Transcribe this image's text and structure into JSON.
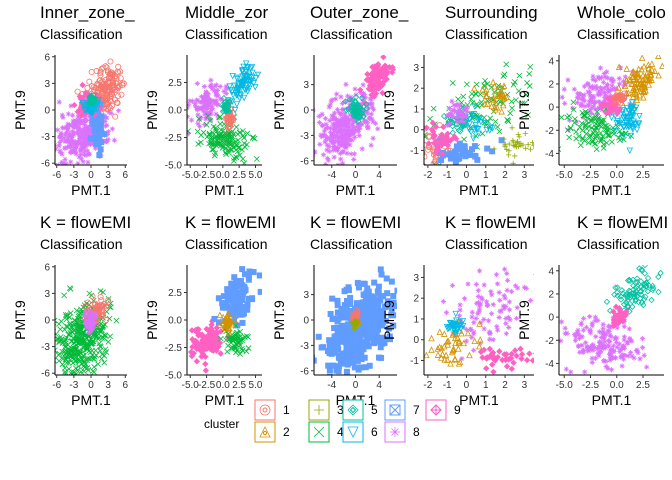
{
  "legend": {
    "title": "cluster",
    "entries": [
      {
        "label": "1",
        "color": "#F8766D",
        "shape": "circle-in-square"
      },
      {
        "label": "2",
        "color": "#D39200",
        "shape": "triangle-in-square"
      },
      {
        "label": "3",
        "color": "#93AA00",
        "shape": "plus-in-square"
      },
      {
        "label": "4",
        "color": "#00BA38",
        "shape": "cross-in-square"
      },
      {
        "label": "5",
        "color": "#00C19F",
        "shape": "diamond-in-square"
      },
      {
        "label": "6",
        "color": "#00B9E3",
        "shape": "down-triangle-in-square"
      },
      {
        "label": "7",
        "color": "#619CFF",
        "shape": "square-cross"
      },
      {
        "label": "8",
        "color": "#DB72FB",
        "shape": "asterisk"
      },
      {
        "label": "9",
        "color": "#FF61C3",
        "shape": "diamond-plus"
      }
    ]
  },
  "chart_data": [
    {
      "type": "scatter",
      "title": "Inner_zone_",
      "subtitle": "Classification",
      "xlabel": "PMT.1",
      "ylabel": "PMT.9",
      "xticks": [
        "-6",
        "-3",
        "0",
        "3",
        "6"
      ],
      "yticks": [
        "-6",
        "-3",
        "0",
        "3",
        "6"
      ],
      "xlim": [
        -6.3,
        6.3
      ],
      "ylim": [
        -6.2,
        6.2
      ],
      "points_depicted": "dense point clouds per cluster; individual points not legible",
      "series": [
        {
          "cluster": "1",
          "center": [
            3.5,
            3.5
          ]
        },
        {
          "cluster": "8",
          "center": [
            -2.5,
            -1.5
          ]
        },
        {
          "cluster": "7",
          "center": [
            1.2,
            -1.5
          ]
        },
        {
          "cluster": "9",
          "center": [
            -1,
            0.6
          ]
        },
        {
          "cluster": "6",
          "center": [
            0,
            0.5
          ]
        },
        {
          "cluster": "5",
          "center": [
            0,
            1.2
          ]
        }
      ]
    },
    {
      "type": "scatter",
      "title": "Middle_zor",
      "subtitle": "Classification",
      "xlabel": "PMT.1",
      "ylabel": "PMT.9",
      "xticks": [
        "-5.0",
        "-2.5",
        "0.0",
        "2.5",
        "5.0"
      ],
      "yticks": [
        "-5.0",
        "-2.5",
        "0.0",
        "2.5"
      ],
      "xlim": [
        -5.5,
        6.0
      ],
      "ylim": [
        -5.0,
        5.0
      ],
      "points_depicted": "dense point clouds per cluster; individual points not legible",
      "series": [
        {
          "cluster": "6",
          "center": [
            2.5,
            1.8
          ]
        },
        {
          "cluster": "8",
          "center": [
            -2.5,
            0.5
          ]
        },
        {
          "cluster": "4",
          "center": [
            0.5,
            -2.5
          ]
        },
        {
          "cluster": "1",
          "center": [
            1.0,
            -0.5
          ]
        }
      ]
    },
    {
      "type": "scatter",
      "title": "Outer_zone_",
      "subtitle": "Classification",
      "xlabel": "PMT.1",
      "ylabel": "PMT.9",
      "xticks": [
        "-4",
        "0",
        "4"
      ],
      "yticks": [
        "-6",
        "-3",
        "0",
        "3"
      ],
      "xlim": [
        -7.0,
        7.0
      ],
      "ylim": [
        -6.5,
        6.5
      ],
      "points_depicted": "dense point clouds per cluster; individual points not legible",
      "series": [
        {
          "cluster": "9",
          "center": [
            3.5,
            3.0
          ]
        },
        {
          "cluster": "8",
          "center": [
            -1.5,
            -1.5
          ]
        },
        {
          "cluster": "5",
          "center": [
            0,
            0
          ]
        }
      ]
    },
    {
      "type": "scatter",
      "title": "Surrounding",
      "subtitle": "Classification",
      "xlabel": "PMT.1",
      "ylabel": "PMT.9",
      "xticks": [
        "-2",
        "-1",
        "0",
        "1",
        "2",
        "3"
      ],
      "yticks": [
        "-1",
        "0",
        "1",
        "2",
        "3"
      ],
      "xlim": [
        -2.2,
        3.5
      ],
      "ylim": [
        -1.7,
        3.6
      ],
      "points_depicted": "dense point clouds per cluster; individual points not legible",
      "series": [
        {
          "cluster": "4",
          "center": [
            0.5,
            1.0
          ]
        },
        {
          "cluster": "5",
          "center": [
            -0.3,
            0.2
          ]
        },
        {
          "cluster": "6",
          "center": [
            0.5,
            0.2
          ]
        },
        {
          "cluster": "2",
          "center": [
            1.2,
            1.2
          ]
        },
        {
          "cluster": "1",
          "center": [
            -1.3,
            -0.8
          ]
        },
        {
          "cluster": "7",
          "center": [
            -0.3,
            -1.0
          ]
        },
        {
          "cluster": "9",
          "center": [
            -1.2,
            -0.5
          ]
        },
        {
          "cluster": "3",
          "center": [
            2.8,
            -0.8
          ]
        }
      ]
    },
    {
      "type": "scatter",
      "title": "Whole_colo",
      "subtitle": "Classification",
      "xlabel": "PMT.1",
      "ylabel": "PMT.9",
      "xticks": [
        "-5.0",
        "-2.5",
        "0.0",
        "2.5"
      ],
      "yticks": [
        "-4",
        "-2",
        "0",
        "2",
        "4"
      ],
      "xlim": [
        -5.5,
        4.5
      ],
      "ylim": [
        -5.0,
        4.5
      ],
      "points_depicted": "dense point clouds per cluster; individual points not legible",
      "series": [
        {
          "cluster": "2",
          "center": [
            2.0,
            2.5
          ]
        },
        {
          "cluster": "8",
          "center": [
            -2.0,
            1.5
          ]
        },
        {
          "cluster": "4",
          "center": [
            -2.0,
            -1.5
          ]
        },
        {
          "cluster": "6",
          "center": [
            1.0,
            -1.0
          ]
        },
        {
          "cluster": "9",
          "center": [
            -0.5,
            0.2
          ]
        }
      ]
    },
    {
      "type": "scatter",
      "title": "K = flowEMI",
      "subtitle": "Classification",
      "xlabel": "PMT.1",
      "ylabel": "PMT.9",
      "xticks": [
        "-6",
        "-3",
        "0",
        "3",
        "6"
      ],
      "yticks": [
        "-6",
        "-3",
        "0",
        "3",
        "6"
      ],
      "xlim": [
        -6.3,
        6.3
      ],
      "ylim": [
        -6.2,
        6.2
      ],
      "points_depicted": "dense point clouds per cluster; individual points not legible",
      "series": [
        {
          "cluster": "4",
          "center": [
            -1.5,
            -1.5
          ]
        },
        {
          "cluster": "1",
          "center": [
            0.8,
            0.8
          ]
        },
        {
          "cluster": "8",
          "center": [
            0,
            0
          ]
        }
      ]
    },
    {
      "type": "scatter",
      "title": "K = flowEMI",
      "subtitle": "Classification",
      "xlabel": "PMT.1",
      "ylabel": "PMT.9",
      "xticks": [
        "-5.0",
        "-2.5",
        "0.0",
        "2.5",
        "5.0"
      ],
      "yticks": [
        "-5.0",
        "-2.5",
        "0.0",
        "2.5"
      ],
      "xlim": [
        -5.5,
        6.0
      ],
      "ylim": [
        -5.0,
        5.0
      ],
      "points_depicted": "dense point clouds per cluster; individual points not legible",
      "series": [
        {
          "cluster": "7",
          "center": [
            2.0,
            1.5
          ]
        },
        {
          "cluster": "9",
          "center": [
            -2.0,
            -1.5
          ]
        },
        {
          "cluster": "4",
          "center": [
            2.0,
            -1.5
          ]
        },
        {
          "cluster": "2",
          "center": [
            0.5,
            0
          ]
        }
      ]
    },
    {
      "type": "scatter",
      "title": "K = flowEMI",
      "subtitle": "Classification",
      "xlabel": "PMT.1",
      "ylabel": "PMT.9",
      "xticks": [
        "-4",
        "0",
        "4"
      ],
      "yticks": [
        "-6",
        "-3",
        "0",
        "3"
      ],
      "xlim": [
        -7.0,
        7.0
      ],
      "ylim": [
        -6.5,
        6.5
      ],
      "points_depicted": "dense point clouds per cluster; individual points not legible",
      "series": [
        {
          "cluster": "7",
          "center": [
            0,
            -0.5
          ]
        },
        {
          "cluster": "1",
          "center": [
            0,
            0.3
          ]
        },
        {
          "cluster": "3",
          "center": [
            0,
            -0.5
          ]
        }
      ]
    },
    {
      "type": "scatter",
      "title": "K = flowEMI",
      "subtitle": "Classification",
      "xlabel": "PMT.1",
      "ylabel": "PMT.9",
      "xticks": [
        "-2",
        "-1",
        "0",
        "1",
        "2",
        "3"
      ],
      "yticks": [
        "-1",
        "0",
        "1",
        "2",
        "3"
      ],
      "xlim": [
        -2.2,
        3.5
      ],
      "ylim": [
        -1.7,
        3.6
      ],
      "points_depicted": "dense point clouds per cluster; individual points not legible",
      "series": [
        {
          "cluster": "8",
          "center": [
            1.5,
            1.5
          ]
        },
        {
          "cluster": "2",
          "center": [
            -0.5,
            -0.3
          ]
        },
        {
          "cluster": "9",
          "center": [
            2.0,
            -0.8
          ]
        }
      ]
    },
    {
      "type": "scatter",
      "title": "K = flowEMI",
      "subtitle": "Classification",
      "xlabel": "PMT.1",
      "ylabel": "PMT.9",
      "xticks": [
        "-5.0",
        "-2.5",
        "0.0",
        "2.5"
      ],
      "yticks": [
        "-4",
        "-2",
        "0",
        "2",
        "4"
      ],
      "xlim": [
        -5.5,
        4.5
      ],
      "ylim": [
        -5.0,
        4.5
      ],
      "points_depicted": "dense point clouds per cluster; individual points not legible",
      "series": [
        {
          "cluster": "5",
          "center": [
            1.5,
            2.0
          ]
        },
        {
          "cluster": "8",
          "center": [
            -1.5,
            -2.0
          ]
        },
        {
          "cluster": "9",
          "center": [
            0,
            0
          ]
        }
      ]
    }
  ]
}
